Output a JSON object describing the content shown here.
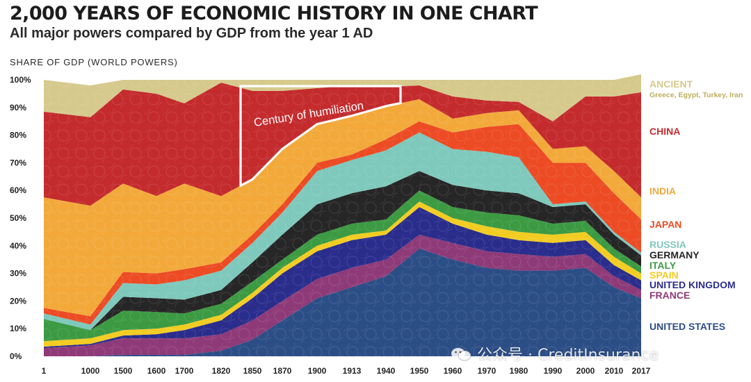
{
  "title": "2,000 YEARS OF ECONOMIC HISTORY IN ONE CHART",
  "subtitle": "All major powers compared by GDP from the year 1 AD",
  "watermark": "公众号 · CreditInsurance",
  "chart_data": {
    "type": "area",
    "stacked": true,
    "title": "2,000 YEARS OF ECONOMIC HISTORY IN ONE CHART",
    "subtitle": "All major powers compared by GDP from the year 1 AD",
    "ylabel": "SHARE OF GDP (WORLD POWERS)",
    "ylim": [
      0,
      100
    ],
    "yticks": [
      "0%",
      "10%",
      "20%",
      "30%",
      "40%",
      "50%",
      "60%",
      "70%",
      "80%",
      "90%",
      "100%"
    ],
    "x": [
      "1",
      "1000",
      "1500",
      "1600",
      "1700",
      "1820",
      "1850",
      "1870",
      "1900",
      "1913",
      "1940",
      "1950",
      "1960",
      "1970",
      "1980",
      "1990",
      "2000",
      "2010",
      "2017"
    ],
    "series": [
      {
        "name": "UNITED STATES",
        "color": "#2c4e86",
        "values": [
          0,
          0,
          0.5,
          0.5,
          0.5,
          2,
          6,
          13,
          21,
          25,
          29,
          39,
          35,
          32,
          31,
          31,
          32,
          25,
          21
        ]
      },
      {
        "name": "FRANCE",
        "color": "#8e3a78",
        "values": [
          3,
          4,
          6,
          6,
          6,
          6,
          7,
          7,
          7,
          7,
          6,
          5,
          6,
          6,
          6,
          5,
          5,
          4,
          3
        ]
      },
      {
        "name": "UNITED KINGDOM",
        "color": "#2a2d8c",
        "values": [
          0.5,
          0.5,
          1,
          1.5,
          3,
          5,
          8,
          10,
          10,
          10,
          9,
          10,
          7,
          6,
          5,
          5,
          5,
          4,
          3.5
        ]
      },
      {
        "name": "SPAIN",
        "color": "#f2cc22",
        "values": [
          2,
          2,
          2,
          2,
          2,
          2,
          2,
          2,
          2,
          2,
          1.5,
          2,
          2,
          3,
          3,
          3,
          3,
          3,
          2.5
        ]
      },
      {
        "name": "ITALY",
        "color": "#3c9a42",
        "values": [
          8,
          3,
          7,
          6,
          4,
          4,
          4,
          3,
          4,
          4,
          4,
          4,
          4,
          5,
          6,
          4,
          4,
          3,
          2.5
        ]
      },
      {
        "name": "GERMANY",
        "color": "#262626",
        "values": [
          0,
          0,
          5,
          5,
          5,
          5,
          7,
          9,
          11,
          11,
          12,
          7,
          8,
          8,
          8,
          6,
          6,
          5,
          4
        ]
      },
      {
        "name": "RUSSIA",
        "color": "#7ec8bc",
        "values": [
          2,
          2,
          5,
          5,
          7,
          7,
          7,
          8,
          12,
          12,
          13,
          14,
          13,
          14,
          13,
          1,
          1,
          1,
          1
        ]
      },
      {
        "name": "JAPAN",
        "color": "#ec4b24",
        "values": [
          2,
          3,
          4,
          4,
          4,
          3,
          3,
          3,
          3,
          2,
          4,
          4,
          6,
          9,
          12,
          15,
          14,
          14,
          12
        ]
      },
      {
        "name": "INDIA",
        "color": "#f2a93a",
        "values": [
          40,
          40,
          32,
          28,
          31,
          24,
          20,
          20,
          14,
          14,
          12,
          8,
          5,
          5,
          5,
          5,
          6,
          8,
          8
        ]
      },
      {
        "name": "CHINA",
        "color": "#c42b2d",
        "values": [
          31,
          32,
          34,
          37,
          29,
          41,
          32,
          21,
          13,
          11,
          7,
          5,
          8,
          4.5,
          3,
          10,
          18,
          27,
          38
        ]
      },
      {
        "name": "ANCIENT",
        "sublabel": "Greece, Egypt, Turkey, Iran",
        "color": "#d6c98c",
        "values": [
          11.5,
          11.5,
          3.5,
          5,
          8.5,
          1,
          4,
          4,
          3,
          2,
          2.5,
          2,
          6,
          7.5,
          8,
          15,
          6,
          6,
          6.5
        ]
      }
    ],
    "annotation": {
      "text": "Century of humiliation",
      "x_start": "1840",
      "x_end": "1945"
    }
  }
}
